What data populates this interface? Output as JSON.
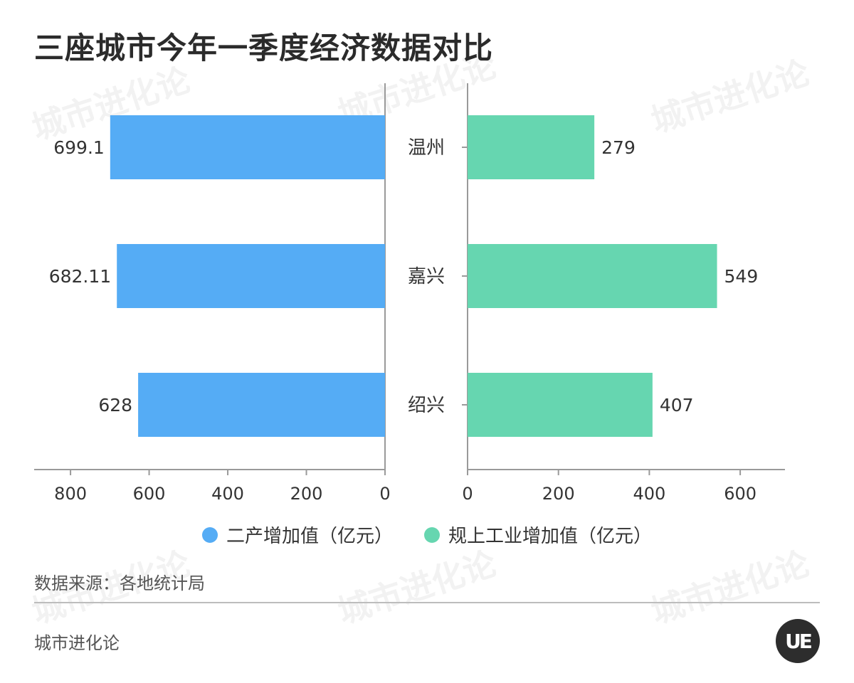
{
  "title": "三座城市今年一季度经济数据对比",
  "source": "数据来源：各地统计局",
  "footer": "城市进化论",
  "logo_text": "UE",
  "watermark_text": "城市进化论",
  "colors": {
    "left": "#55acf5",
    "right": "#66d6b0",
    "axis": "#9a9a9a",
    "text": "#333333"
  },
  "chart_data": {
    "type": "bar",
    "orientation": "horizontal-butterfly",
    "categories": [
      "温州",
      "嘉兴",
      "绍兴"
    ],
    "series": [
      {
        "name": "二产增加值（亿元）",
        "values": [
          699.1,
          682.11,
          628
        ],
        "value_labels": [
          "699.1",
          "682.11",
          "628"
        ]
      },
      {
        "name": "规上工业增加值（亿元）",
        "values": [
          279,
          549,
          407
        ],
        "value_labels": [
          "279",
          "549",
          "407"
        ]
      }
    ],
    "left_axis": {
      "range": [
        0,
        800
      ],
      "ticks": [
        "800",
        "600",
        "400",
        "200",
        "0"
      ]
    },
    "right_axis": {
      "range": [
        0,
        700
      ],
      "ticks": [
        "0",
        "200",
        "400",
        "600"
      ]
    },
    "legend_position": "bottom"
  }
}
